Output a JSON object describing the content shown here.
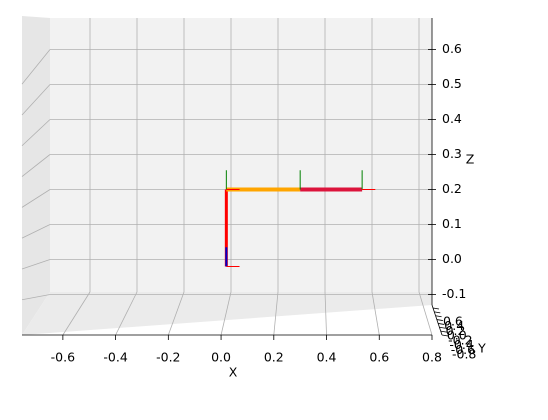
{
  "chart_data": {
    "type": "line3d",
    "xlabel": "X",
    "ylabel": "Y",
    "zlabel": "Z",
    "xlim": [
      -0.755,
      0.8
    ],
    "xticks": [
      -0.6,
      -0.4,
      -0.2,
      {
        "value": 0,
        "label": "0.0"
      },
      0.2,
      0.4,
      0.6,
      0.8
    ],
    "zlim": [
      -0.13,
      0.69
    ],
    "zticks": [
      -0.1,
      {
        "value": 0,
        "label": "0.0"
      },
      0.1,
      0.2,
      0.3,
      0.4,
      0.5,
      0.6
    ],
    "yticks": [
      0.6,
      0.4,
      0.2,
      {
        "value": 0,
        "label": "0.0"
      },
      -0.2,
      -0.4,
      -0.6,
      -0.8
    ],
    "grid": true,
    "series": [
      {
        "color": "#ff0000",
        "width": 3,
        "x": [
          0.02,
          0.02
        ],
        "z": [
          -0.02,
          0.2
        ]
      },
      {
        "color": "#0000cc",
        "width": 2,
        "x": [
          0.02,
          0.02
        ],
        "z": [
          -0.02,
          0.035
        ]
      },
      {
        "color": "#ffa500",
        "width": 4,
        "x": [
          0.02,
          0.3
        ],
        "z": [
          0.2,
          0.2
        ]
      },
      {
        "color": "#dc143c",
        "width": 4,
        "x": [
          0.3,
          0.535
        ],
        "z": [
          0.2,
          0.2
        ]
      },
      {
        "color": "#008000",
        "width": 1,
        "x": [
          0.02,
          0.02
        ],
        "z": [
          0.2,
          0.255
        ]
      },
      {
        "color": "#008000",
        "width": 1,
        "x": [
          0.3,
          0.3
        ],
        "z": [
          0.2,
          0.255
        ]
      },
      {
        "color": "#008000",
        "width": 1,
        "x": [
          0.535,
          0.535
        ],
        "z": [
          0.2,
          0.255
        ]
      },
      {
        "color": "#ff0000",
        "width": 1,
        "x": [
          0.02,
          0.07
        ],
        "z": [
          0.2,
          0.2
        ]
      },
      {
        "color": "#ff0000",
        "width": 1,
        "x": [
          0.535,
          0.585
        ],
        "z": [
          0.2,
          0.2
        ]
      },
      {
        "color": "#ff0000",
        "width": 1,
        "x": [
          0.02,
          0.07
        ],
        "z": [
          -0.02,
          -0.02
        ]
      }
    ]
  }
}
